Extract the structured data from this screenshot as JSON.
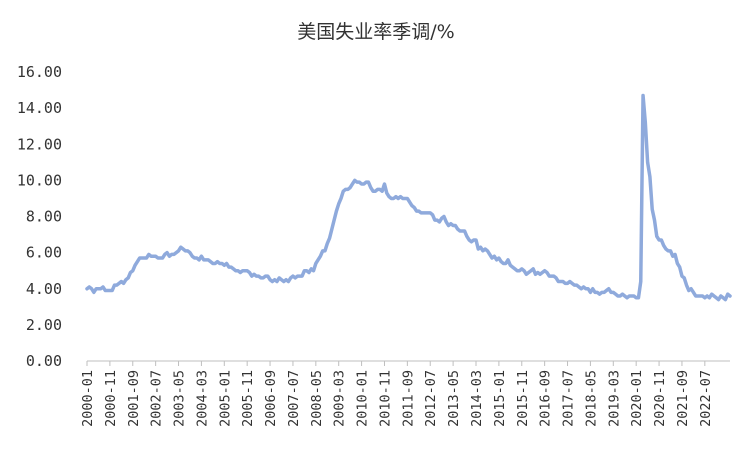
{
  "chart_data": {
    "type": "line",
    "title": "美国失业率季调/%",
    "xlabel": "",
    "ylabel": "",
    "ylim": [
      0,
      16
    ],
    "grid": false,
    "legend": "none",
    "colors": {
      "line": "#8FAADC",
      "axis": "#BFBFBF",
      "text": "#333333"
    },
    "yticks": [
      "0.00",
      "2.00",
      "4.00",
      "6.00",
      "8.00",
      "10.00",
      "12.00",
      "14.00",
      "16.00"
    ],
    "xticks": [
      "2000-01",
      "2000-11",
      "2001-09",
      "2002-07",
      "2003-05",
      "2004-03",
      "2005-01",
      "2005-11",
      "2006-09",
      "2007-07",
      "2008-05",
      "2009-03",
      "2010-01",
      "2010-11",
      "2011-09",
      "2012-07",
      "2013-05",
      "2014-03",
      "2015-01",
      "2015-11",
      "2016-09",
      "2017-07",
      "2018-05",
      "2019-03",
      "2020-01",
      "2020-11",
      "2021-09",
      "2022-07"
    ],
    "x_start": "2000-01",
    "series": [
      {
        "values": [
          4.0,
          4.1,
          4.0,
          3.8,
          4.0,
          4.0,
          4.0,
          4.1,
          3.9,
          3.9,
          3.9,
          3.9,
          4.2,
          4.2,
          4.3,
          4.4,
          4.3,
          4.5,
          4.6,
          4.9,
          5.0,
          5.3,
          5.5,
          5.7,
          5.7,
          5.7,
          5.7,
          5.9,
          5.8,
          5.8,
          5.8,
          5.7,
          5.7,
          5.7,
          5.9,
          6.0,
          5.8,
          5.9,
          5.9,
          6.0,
          6.1,
          6.3,
          6.2,
          6.1,
          6.1,
          6.0,
          5.8,
          5.7,
          5.7,
          5.6,
          5.8,
          5.6,
          5.6,
          5.6,
          5.5,
          5.4,
          5.4,
          5.5,
          5.4,
          5.4,
          5.3,
          5.4,
          5.2,
          5.2,
          5.1,
          5.0,
          5.0,
          4.9,
          5.0,
          5.0,
          5.0,
          4.9,
          4.7,
          4.8,
          4.7,
          4.7,
          4.6,
          4.6,
          4.7,
          4.7,
          4.5,
          4.4,
          4.5,
          4.4,
          4.6,
          4.5,
          4.4,
          4.5,
          4.4,
          4.6,
          4.7,
          4.6,
          4.7,
          4.7,
          4.7,
          5.0,
          5.0,
          4.9,
          5.1,
          5.0,
          5.4,
          5.6,
          5.8,
          6.1,
          6.1,
          6.5,
          6.8,
          7.3,
          7.8,
          8.3,
          8.7,
          9.0,
          9.4,
          9.5,
          9.5,
          9.6,
          9.8,
          10.0,
          9.9,
          9.9,
          9.8,
          9.8,
          9.9,
          9.9,
          9.6,
          9.4,
          9.4,
          9.5,
          9.5,
          9.4,
          9.8,
          9.3,
          9.1,
          9.0,
          9.0,
          9.1,
          9.0,
          9.1,
          9.0,
          9.0,
          9.0,
          8.8,
          8.6,
          8.5,
          8.3,
          8.3,
          8.2,
          8.2,
          8.2,
          8.2,
          8.2,
          8.1,
          7.8,
          7.8,
          7.7,
          7.9,
          8.0,
          7.7,
          7.5,
          7.6,
          7.5,
          7.5,
          7.3,
          7.2,
          7.2,
          7.2,
          6.9,
          6.7,
          6.6,
          6.7,
          6.7,
          6.2,
          6.3,
          6.1,
          6.2,
          6.1,
          5.9,
          5.7,
          5.8,
          5.6,
          5.7,
          5.5,
          5.4,
          5.4,
          5.6,
          5.3,
          5.2,
          5.1,
          5.0,
          5.0,
          5.1,
          5.0,
          4.8,
          4.9,
          5.0,
          5.1,
          4.8,
          4.9,
          4.8,
          4.9,
          5.0,
          4.9,
          4.7,
          4.7,
          4.7,
          4.6,
          4.4,
          4.4,
          4.4,
          4.3,
          4.3,
          4.4,
          4.3,
          4.2,
          4.2,
          4.1,
          4.0,
          4.1,
          4.0,
          4.0,
          3.8,
          4.0,
          3.8,
          3.8,
          3.7,
          3.8,
          3.8,
          3.9,
          4.0,
          3.8,
          3.8,
          3.7,
          3.6,
          3.6,
          3.7,
          3.6,
          3.5,
          3.6,
          3.6,
          3.6,
          3.5,
          3.5,
          4.4,
          14.7,
          13.2,
          11.0,
          10.2,
          8.4,
          7.8,
          6.9,
          6.7,
          6.7,
          6.4,
          6.2,
          6.1,
          6.1,
          5.8,
          5.9,
          5.4,
          5.2,
          4.7,
          4.6,
          4.2,
          3.9,
          4.0,
          3.8,
          3.6,
          3.6,
          3.6,
          3.6,
          3.5,
          3.6,
          3.5,
          3.7,
          3.6,
          3.5,
          3.4,
          3.6,
          3.5,
          3.4,
          3.7,
          3.6
        ]
      }
    ]
  }
}
